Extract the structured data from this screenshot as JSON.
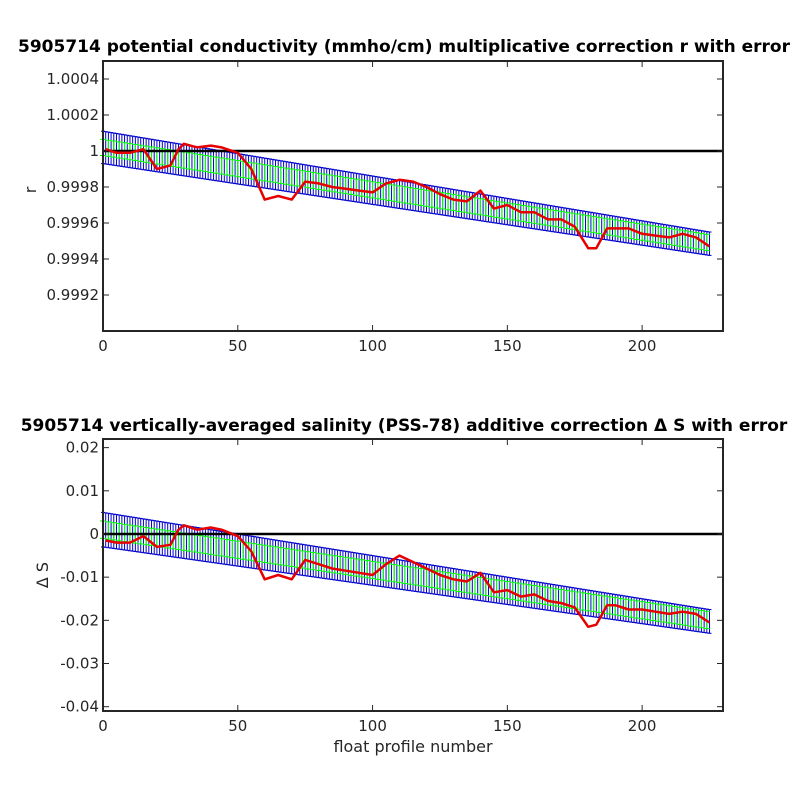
{
  "chart_data": [
    {
      "type": "line",
      "title": "5905714 potential conductivity (mmho/cm) multiplicative correction r with error",
      "xlabel": "",
      "ylabel": "r",
      "xlim": [
        0,
        230
      ],
      "ylim": [
        0.999,
        1.0005
      ],
      "xticks": [
        0,
        50,
        100,
        150,
        200
      ],
      "yticks": [
        0.9992,
        0.9994,
        0.9996,
        0.9998,
        1,
        1.0002,
        1.0004
      ],
      "ytick_labels": [
        "0.9992",
        "0.9994",
        "0.9996",
        "0.9998",
        "1",
        "1.0002",
        "1.0004"
      ],
      "reference_line": 1,
      "series": [
        {
          "role": "estimate-red",
          "color": "#e60000",
          "x": [
            1,
            5,
            10,
            15,
            20,
            25,
            28,
            30,
            35,
            40,
            44,
            50,
            55,
            60,
            65,
            70,
            75,
            80,
            85,
            90,
            95,
            100,
            105,
            110,
            115,
            120,
            125,
            130,
            135,
            140,
            145,
            150,
            155,
            160,
            165,
            170,
            175,
            180,
            183,
            187,
            190,
            195,
            200,
            205,
            210,
            215,
            220,
            225
          ],
          "y": [
            1.00001,
            0.99999,
            0.99999,
            1.00001,
            0.9999,
            0.99992,
            1.00001,
            1.00004,
            1.00002,
            1.00003,
            1.00002,
            0.99999,
            0.9999,
            0.99973,
            0.99975,
            0.99973,
            0.99983,
            0.99982,
            0.9998,
            0.99979,
            0.99978,
            0.99977,
            0.99982,
            0.99984,
            0.99983,
            0.9998,
            0.99976,
            0.99973,
            0.99972,
            0.99978,
            0.99968,
            0.9997,
            0.99966,
            0.99966,
            0.99962,
            0.99962,
            0.99958,
            0.99946,
            0.99946,
            0.99957,
            0.99957,
            0.99957,
            0.99954,
            0.99953,
            0.99952,
            0.99954,
            0.99952,
            0.99947
          ]
        },
        {
          "role": "fit-green",
          "color": "#00ff00",
          "x": [
            0,
            225
          ],
          "y": [
            1.00002,
            0.99949
          ]
        },
        {
          "role": "error-blue",
          "color": "#0000cc",
          "x": [
            0,
            225
          ],
          "y_upper": [
            1.00011,
            0.99955
          ],
          "y_lower": [
            0.99993,
            0.99942
          ]
        }
      ]
    },
    {
      "type": "line",
      "title": "5905714 vertically-averaged salinity (PSS-78) additive correction Δ S with error",
      "xlabel": "float profile number",
      "ylabel": "Δ S",
      "xlim": [
        0,
        230
      ],
      "ylim": [
        -0.041,
        0.022
      ],
      "xticks": [
        0,
        50,
        100,
        150,
        200
      ],
      "yticks": [
        -0.04,
        -0.03,
        -0.02,
        -0.01,
        0,
        0.01,
        0.02
      ],
      "ytick_labels": [
        "-0.04",
        "-0.03",
        "-0.02",
        "-0.01",
        "0",
        "0.01",
        "0.02"
      ],
      "reference_line": 0,
      "series": [
        {
          "role": "estimate-red",
          "color": "#e60000",
          "x": [
            1,
            5,
            10,
            15,
            20,
            25,
            28,
            30,
            35,
            40,
            44,
            50,
            55,
            60,
            65,
            70,
            75,
            80,
            85,
            90,
            95,
            100,
            105,
            110,
            115,
            120,
            125,
            130,
            135,
            140,
            145,
            150,
            155,
            160,
            165,
            170,
            175,
            180,
            183,
            187,
            190,
            195,
            200,
            205,
            210,
            215,
            220,
            225
          ],
          "y": [
            -0.0015,
            -0.002,
            -0.002,
            -0.0005,
            -0.003,
            -0.0025,
            0.001,
            0.002,
            0.001,
            0.0015,
            0.001,
            -0.0005,
            -0.004,
            -0.0105,
            -0.0095,
            -0.0105,
            -0.006,
            -0.007,
            -0.008,
            -0.0085,
            -0.009,
            -0.0095,
            -0.007,
            -0.005,
            -0.0065,
            -0.008,
            -0.0095,
            -0.0105,
            -0.011,
            -0.009,
            -0.0135,
            -0.013,
            -0.0145,
            -0.014,
            -0.0155,
            -0.016,
            -0.017,
            -0.0215,
            -0.021,
            -0.0165,
            -0.0165,
            -0.0175,
            -0.0175,
            -0.018,
            -0.0185,
            -0.018,
            -0.0185,
            -0.0205
          ]
        },
        {
          "role": "fit-green",
          "color": "#00ff00",
          "x": [
            0,
            225
          ],
          "y": [
            0.001,
            -0.02
          ]
        },
        {
          "role": "error-blue",
          "color": "#0000cc",
          "x": [
            0,
            225
          ],
          "y_upper": [
            0.005,
            -0.0175
          ],
          "y_lower": [
            -0.003,
            -0.023
          ]
        }
      ]
    }
  ]
}
